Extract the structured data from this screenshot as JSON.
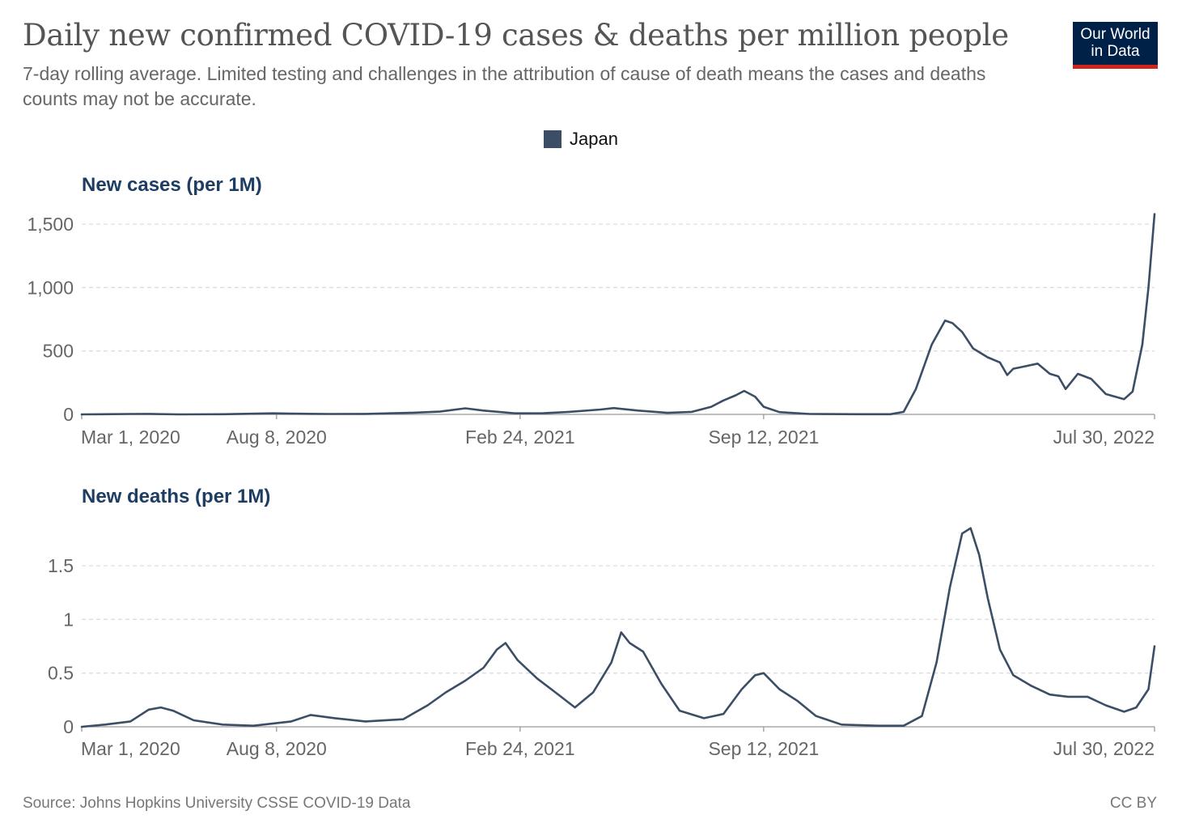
{
  "header": {
    "title": "Daily new confirmed COVID-19 cases & deaths per million people",
    "subtitle": "7-day rolling average. Limited testing and challenges in the attribution of cause of death means the cases and deaths counts may not be accurate."
  },
  "logo": {
    "line1": "Our World",
    "line2": "in Data"
  },
  "legend": {
    "label": "Japan",
    "color": "#3c4e66"
  },
  "footer": {
    "source": "Source: Johns Hopkins University CSSE COVID-19 Data",
    "license": "CC BY"
  },
  "chart_data": [
    {
      "type": "line",
      "title": "New cases (per 1M)",
      "series": [
        {
          "name": "Japan",
          "color": "#3c4e66",
          "points": [
            [
              "2020-03-01",
              0
            ],
            [
              "2020-04-10",
              3
            ],
            [
              "2020-04-25",
              4
            ],
            [
              "2020-05-20",
              0
            ],
            [
              "2020-06-25",
              1
            ],
            [
              "2020-08-05",
              8
            ],
            [
              "2020-08-20",
              6
            ],
            [
              "2020-09-20",
              3
            ],
            [
              "2020-10-20",
              4
            ],
            [
              "2020-11-25",
              12
            ],
            [
              "2020-12-20",
              22
            ],
            [
              "2021-01-10",
              48
            ],
            [
              "2021-01-25",
              30
            ],
            [
              "2021-02-20",
              8
            ],
            [
              "2021-03-15",
              9
            ],
            [
              "2021-04-05",
              20
            ],
            [
              "2021-05-01",
              38
            ],
            [
              "2021-05-12",
              50
            ],
            [
              "2021-06-01",
              30
            ],
            [
              "2021-06-25",
              12
            ],
            [
              "2021-07-15",
              20
            ],
            [
              "2021-07-31",
              60
            ],
            [
              "2021-08-10",
              110
            ],
            [
              "2021-08-20",
              150
            ],
            [
              "2021-08-27",
              185
            ],
            [
              "2021-09-05",
              140
            ],
            [
              "2021-09-12",
              60
            ],
            [
              "2021-09-25",
              18
            ],
            [
              "2021-10-20",
              3
            ],
            [
              "2021-11-30",
              1
            ],
            [
              "2021-12-25",
              1
            ],
            [
              "2022-01-05",
              20
            ],
            [
              "2022-01-15",
              200
            ],
            [
              "2022-01-28",
              550
            ],
            [
              "2022-02-08",
              740
            ],
            [
              "2022-02-14",
              720
            ],
            [
              "2022-02-22",
              650
            ],
            [
              "2022-03-03",
              520
            ],
            [
              "2022-03-15",
              450
            ],
            [
              "2022-03-25",
              410
            ],
            [
              "2022-03-31",
              310
            ],
            [
              "2022-04-05",
              360
            ],
            [
              "2022-04-15",
              380
            ],
            [
              "2022-04-25",
              400
            ],
            [
              "2022-05-05",
              320
            ],
            [
              "2022-05-12",
              300
            ],
            [
              "2022-05-18",
              200
            ],
            [
              "2022-05-28",
              320
            ],
            [
              "2022-06-08",
              280
            ],
            [
              "2022-06-20",
              160
            ],
            [
              "2022-07-05",
              120
            ],
            [
              "2022-07-12",
              180
            ],
            [
              "2022-07-20",
              550
            ],
            [
              "2022-07-25",
              1000
            ],
            [
              "2022-07-30",
              1580
            ]
          ]
        }
      ],
      "y_ticks": [
        "0",
        "500",
        "1,000",
        "1,500"
      ],
      "x_ticks": [
        "Mar 1, 2020",
        "Aug 8, 2020",
        "Feb 24, 2021",
        "Sep 12, 2021",
        "Jul 30, 2022"
      ],
      "grid": true
    },
    {
      "type": "line",
      "title": "New deaths (per 1M)",
      "series": [
        {
          "name": "Japan",
          "color": "#3c4e66",
          "points": [
            [
              "2020-03-01",
              0
            ],
            [
              "2020-03-20",
              0.02
            ],
            [
              "2020-04-10",
              0.05
            ],
            [
              "2020-04-25",
              0.16
            ],
            [
              "2020-05-05",
              0.18
            ],
            [
              "2020-05-15",
              0.15
            ],
            [
              "2020-06-01",
              0.06
            ],
            [
              "2020-06-25",
              0.02
            ],
            [
              "2020-07-20",
              0.01
            ],
            [
              "2020-08-20",
              0.05
            ],
            [
              "2020-09-05",
              0.11
            ],
            [
              "2020-09-25",
              0.08
            ],
            [
              "2020-10-20",
              0.05
            ],
            [
              "2020-11-20",
              0.07
            ],
            [
              "2020-12-10",
              0.2
            ],
            [
              "2020-12-25",
              0.32
            ],
            [
              "2021-01-10",
              0.43
            ],
            [
              "2021-01-25",
              0.55
            ],
            [
              "2021-02-05",
              0.72
            ],
            [
              "2021-02-12",
              0.78
            ],
            [
              "2021-02-22",
              0.62
            ],
            [
              "2021-03-10",
              0.45
            ],
            [
              "2021-03-25",
              0.32
            ],
            [
              "2021-04-10",
              0.18
            ],
            [
              "2021-04-25",
              0.32
            ],
            [
              "2021-05-10",
              0.6
            ],
            [
              "2021-05-18",
              0.88
            ],
            [
              "2021-05-25",
              0.78
            ],
            [
              "2021-06-05",
              0.7
            ],
            [
              "2021-06-20",
              0.4
            ],
            [
              "2021-07-05",
              0.15
            ],
            [
              "2021-07-25",
              0.08
            ],
            [
              "2021-08-10",
              0.12
            ],
            [
              "2021-08-25",
              0.35
            ],
            [
              "2021-09-05",
              0.48
            ],
            [
              "2021-09-12",
              0.5
            ],
            [
              "2021-09-25",
              0.35
            ],
            [
              "2021-10-10",
              0.24
            ],
            [
              "2021-10-25",
              0.1
            ],
            [
              "2021-11-15",
              0.02
            ],
            [
              "2021-12-15",
              0.01
            ],
            [
              "2022-01-05",
              0.01
            ],
            [
              "2022-01-20",
              0.1
            ],
            [
              "2022-02-01",
              0.6
            ],
            [
              "2022-02-12",
              1.3
            ],
            [
              "2022-02-22",
              1.8
            ],
            [
              "2022-03-01",
              1.85
            ],
            [
              "2022-03-08",
              1.6
            ],
            [
              "2022-03-15",
              1.2
            ],
            [
              "2022-03-25",
              0.72
            ],
            [
              "2022-04-05",
              0.48
            ],
            [
              "2022-04-20",
              0.38
            ],
            [
              "2022-05-05",
              0.3
            ],
            [
              "2022-05-20",
              0.28
            ],
            [
              "2022-06-05",
              0.28
            ],
            [
              "2022-06-20",
              0.2
            ],
            [
              "2022-07-05",
              0.14
            ],
            [
              "2022-07-15",
              0.18
            ],
            [
              "2022-07-25",
              0.35
            ],
            [
              "2022-07-30",
              0.75
            ]
          ]
        }
      ],
      "y_ticks": [
        "0",
        "0.5",
        "1",
        "1.5"
      ],
      "x_ticks": [
        "Mar 1, 2020",
        "Aug 8, 2020",
        "Feb 24, 2021",
        "Sep 12, 2021",
        "Jul 30, 2022"
      ],
      "grid": true
    }
  ]
}
